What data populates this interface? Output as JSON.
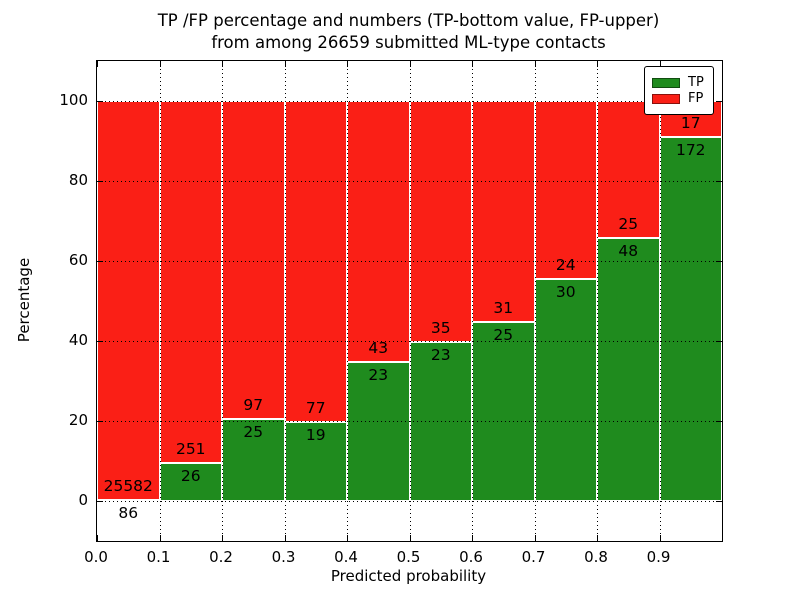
{
  "title": {
    "line1": "TP /FP percentage and numbers (TP-bottom value, FP-upper)",
    "line2": "from among 26659 submitted ML-type contacts"
  },
  "chart_data": {
    "type": "bar",
    "stacked": true,
    "title": "TP /FP percentage and numbers (TP-bottom value, FP-upper) from among 26659 submitted ML-type contacts",
    "xlabel": "Predicted probability",
    "ylabel": "Percentage",
    "total_contacts": 26659,
    "xlim": [
      0,
      1
    ],
    "ylim": [
      -10,
      110
    ],
    "bin_width": 0.1,
    "bin_starts": [
      0.0,
      0.1,
      0.2,
      0.3,
      0.4,
      0.5,
      0.6,
      0.7,
      0.8,
      0.9
    ],
    "x_tick_labels": [
      "0.0",
      "0.1",
      "0.2",
      "0.3",
      "0.4",
      "0.5",
      "0.6",
      "0.7",
      "0.8",
      "0.9"
    ],
    "y_ticks": [
      0,
      20,
      40,
      60,
      80,
      100
    ],
    "grid": "dotted",
    "bars_sum_to": 100,
    "series": [
      {
        "name": "TP",
        "color": "#1f8b1e",
        "counts": [
          86,
          26,
          25,
          19,
          23,
          23,
          25,
          30,
          48,
          172
        ]
      },
      {
        "name": "FP",
        "color": "#fa1f16",
        "counts": [
          25582,
          251,
          97,
          77,
          43,
          35,
          31,
          24,
          25,
          17
        ]
      }
    ],
    "tp_percent_by_bin": [
      0.34,
      9.39,
      20.49,
      19.79,
      34.85,
      39.66,
      44.64,
      55.56,
      65.75,
      91.01
    ],
    "legend": {
      "position": "upper right",
      "entries": [
        {
          "label": "TP",
          "color": "#1f8b1e"
        },
        {
          "label": "FP",
          "color": "#fa1f16"
        }
      ]
    }
  }
}
